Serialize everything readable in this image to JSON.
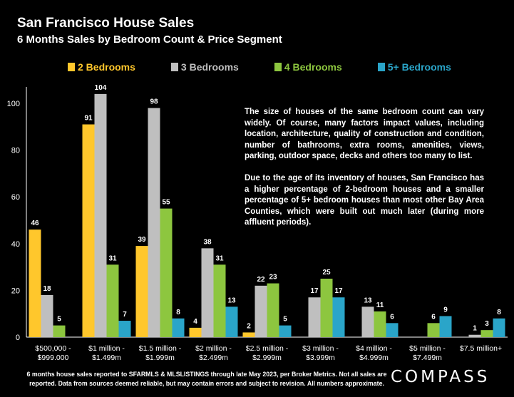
{
  "header": {
    "title": "San Francisco House Sales",
    "subtitle": "6 Months Sales by Bedroom Count & Price Segment"
  },
  "note": {
    "paragraph1": "The size of houses of the same bedroom count can vary widely. Of course, many factors impact values, including location, architecture, quality of construction and condition, number of bathrooms, extra rooms, amenities, views, parking, outdoor space, decks and others too many to list.",
    "paragraph2": "Due to the age of its inventory of houses, San Francisco has a higher percentage of 2-bedroom houses and a smaller percentage of 5+ bedroom houses than most other Bay Area Counties, which were built out much later (during more affluent periods)."
  },
  "footer": {
    "text": "6 months house sales reported to SFARMLS & MLSLISTINGS through late May 2023, per Broker Metrics. Not all sales are reported. Data from sources deemed reliable, but may contain errors and subject to revision. All numbers approximate.",
    "logo": "COMPASS"
  },
  "colors": {
    "2 Bedrooms": "#FFC72C",
    "3 Bedrooms": "#BFBFBF",
    "4 Bedrooms": "#8DC63F",
    "5+ Bedrooms": "#2AA5C9",
    "axis": "#FFFFFF",
    "background": "#000000"
  },
  "chart_data": {
    "type": "bar",
    "title": "San Francisco House Sales",
    "subtitle": "6 Months Sales by Bedroom Count & Price Segment",
    "categories": [
      [
        "$500,000 -",
        "$999,000"
      ],
      [
        "$1 million -",
        "$1.499m"
      ],
      [
        "$1.5 million -",
        "$1.999m"
      ],
      [
        "$2 million -",
        "$2.499m"
      ],
      [
        "$2.5 million -",
        "$2.999m"
      ],
      [
        "$3 million -",
        "$3.999m"
      ],
      [
        "$4 million -",
        "$4.999m"
      ],
      [
        "$5 million -",
        "$7.499m"
      ],
      [
        "$7.5 million+"
      ]
    ],
    "series": [
      {
        "name": "2 Bedrooms",
        "values": [
          46,
          91,
          39,
          4,
          2,
          null,
          null,
          null,
          null
        ]
      },
      {
        "name": "3 Bedrooms",
        "values": [
          18,
          104,
          98,
          38,
          22,
          17,
          13,
          null,
          1
        ]
      },
      {
        "name": "4 Bedrooms",
        "values": [
          5,
          31,
          55,
          31,
          23,
          25,
          11,
          6,
          3
        ]
      },
      {
        "name": "5+ Bedrooms",
        "values": [
          null,
          7,
          8,
          13,
          5,
          17,
          6,
          9,
          8
        ]
      }
    ],
    "ylim": [
      0,
      100
    ],
    "yticks": [
      0,
      20,
      40,
      60,
      80,
      100
    ],
    "ylim_max_bar": 104,
    "grid": false,
    "legend_position": "top"
  }
}
